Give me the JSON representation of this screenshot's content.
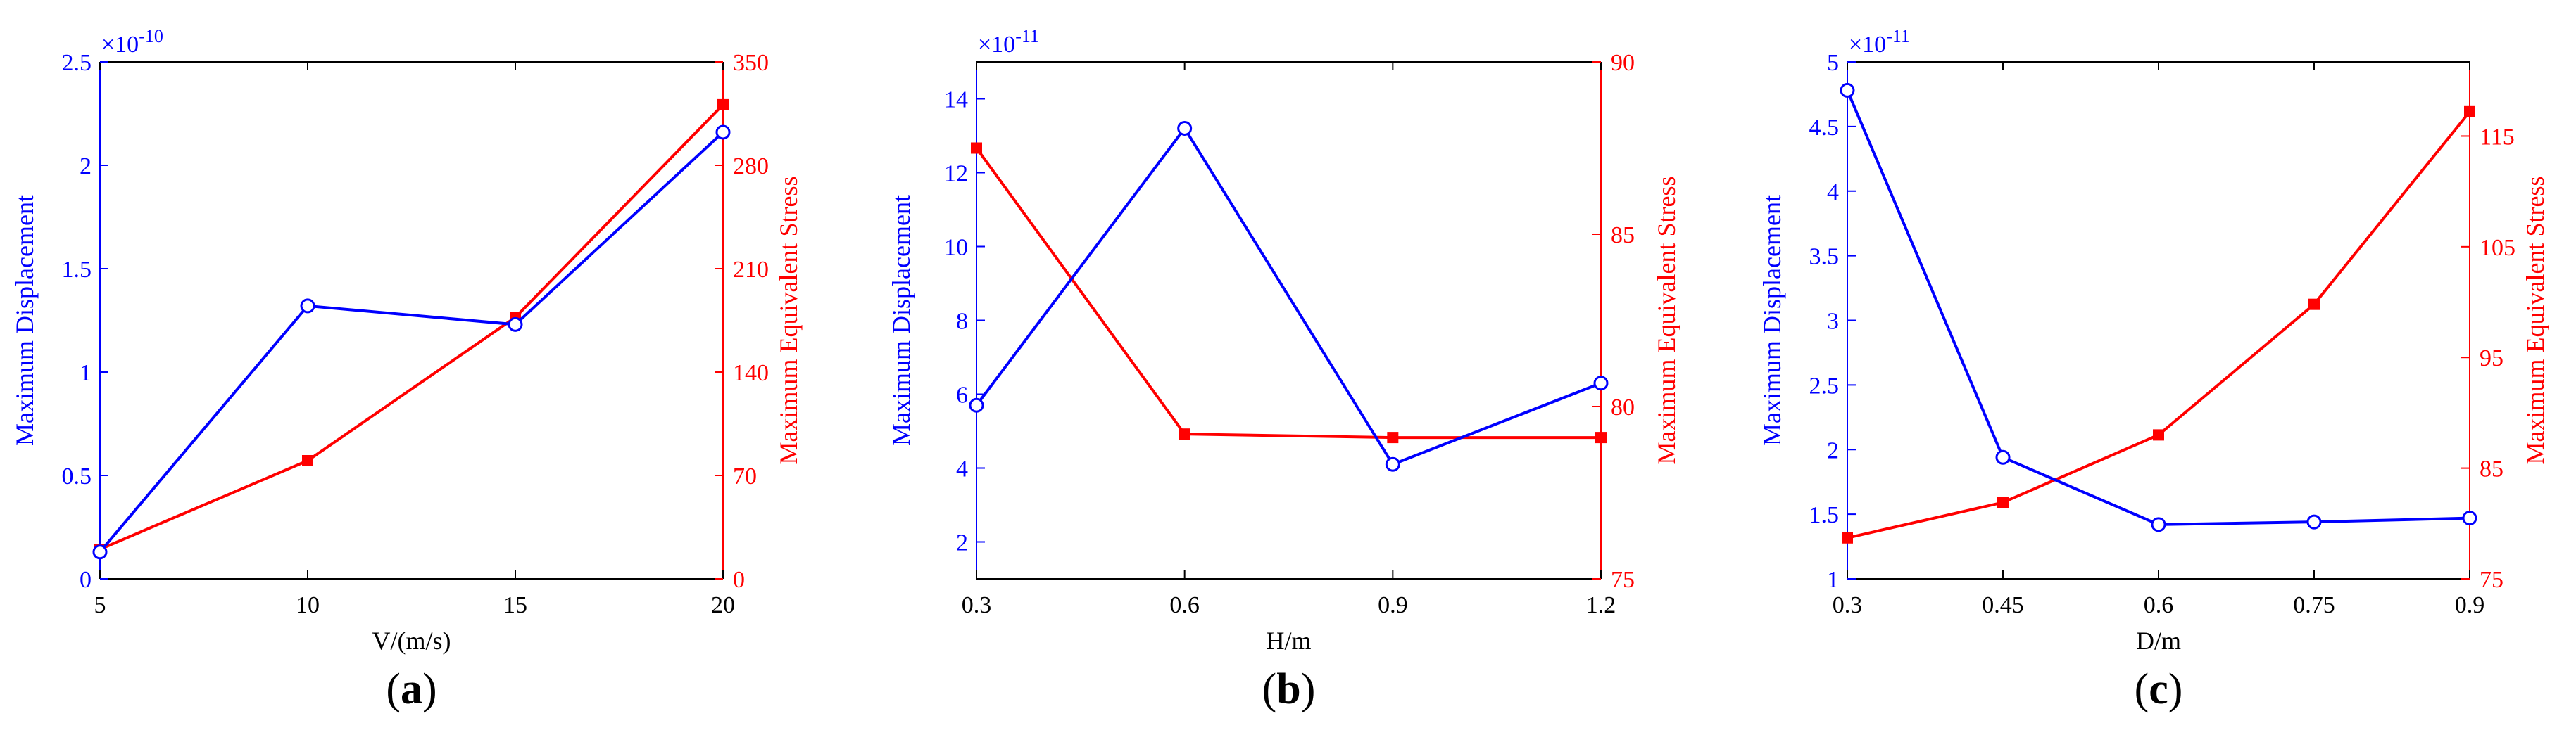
{
  "colors": {
    "left_series": "#0000ff",
    "right_series": "#ff0000",
    "axes": "#000000"
  },
  "chart_data": [
    {
      "panel_label": "a",
      "type": "line",
      "xlabel": "V/(m/s)",
      "x": [
        5,
        10,
        15,
        20
      ],
      "xlim": [
        5,
        20
      ],
      "xticks": [
        "5",
        "10",
        "15",
        "20"
      ],
      "left_axis": {
        "label": "Maximum Displacement",
        "exponent": "×10",
        "exponent_power": "-10",
        "lim": [
          0,
          2.5
        ],
        "ticks": [
          "0",
          "0.5",
          "1",
          "1.5",
          "2",
          "2.5"
        ],
        "values": [
          0.13,
          1.32,
          1.23,
          2.16
        ],
        "marker": "circle"
      },
      "right_axis": {
        "label": "Maximum Equivalent Stress",
        "lim": [
          0,
          350
        ],
        "ticks": [
          "0",
          "70",
          "140",
          "210",
          "280",
          "350"
        ],
        "values": [
          20,
          80,
          177,
          321
        ],
        "marker": "square"
      }
    },
    {
      "panel_label": "b",
      "type": "line",
      "xlabel": "H/m",
      "x": [
        0.3,
        0.6,
        0.9,
        1.2
      ],
      "xlim": [
        0.3,
        1.2
      ],
      "xticks": [
        "0.3",
        "0.6",
        "0.9",
        "1.2"
      ],
      "left_axis": {
        "label": "Maximum Displacement",
        "exponent": "×10",
        "exponent_power": "-11",
        "lim": [
          1,
          15
        ],
        "ticks": [
          "2",
          "4",
          "6",
          "8",
          "10",
          "12",
          "14"
        ],
        "values": [
          5.7,
          13.2,
          4.1,
          6.3
        ],
        "marker": "circle"
      },
      "right_axis": {
        "label": "Maximum Equivalent Stress",
        "lim": [
          75,
          90
        ],
        "ticks": [
          "75",
          "80",
          "85",
          "90"
        ],
        "values": [
          87.5,
          79.2,
          79.1,
          79.1
        ],
        "marker": "square"
      }
    },
    {
      "panel_label": "c",
      "type": "line",
      "xlabel": "D/m",
      "x": [
        0.3,
        0.45,
        0.6,
        0.75,
        0.9
      ],
      "xlim": [
        0.3,
        0.9
      ],
      "xticks": [
        "0.3",
        "0.45",
        "0.6",
        "0.75",
        "0.9"
      ],
      "left_axis": {
        "label": "Maximum Displacement",
        "exponent": "×10",
        "exponent_power": "-11",
        "lim": [
          1,
          5
        ],
        "ticks": [
          "1",
          "1.5",
          "2",
          "2.5",
          "3",
          "3.5",
          "4",
          "4.5",
          "5"
        ],
        "values": [
          4.78,
          1.94,
          1.42,
          1.44,
          1.47
        ],
        "marker": "circle"
      },
      "right_axis": {
        "label": "Maximum Equivalent Stress",
        "lim": [
          75,
          121.7
        ],
        "ticks": [
          "75",
          "85",
          "95",
          "105",
          "115"
        ],
        "values": [
          78.7,
          81.9,
          88,
          99.8,
          117.2
        ],
        "marker": "square"
      }
    }
  ]
}
